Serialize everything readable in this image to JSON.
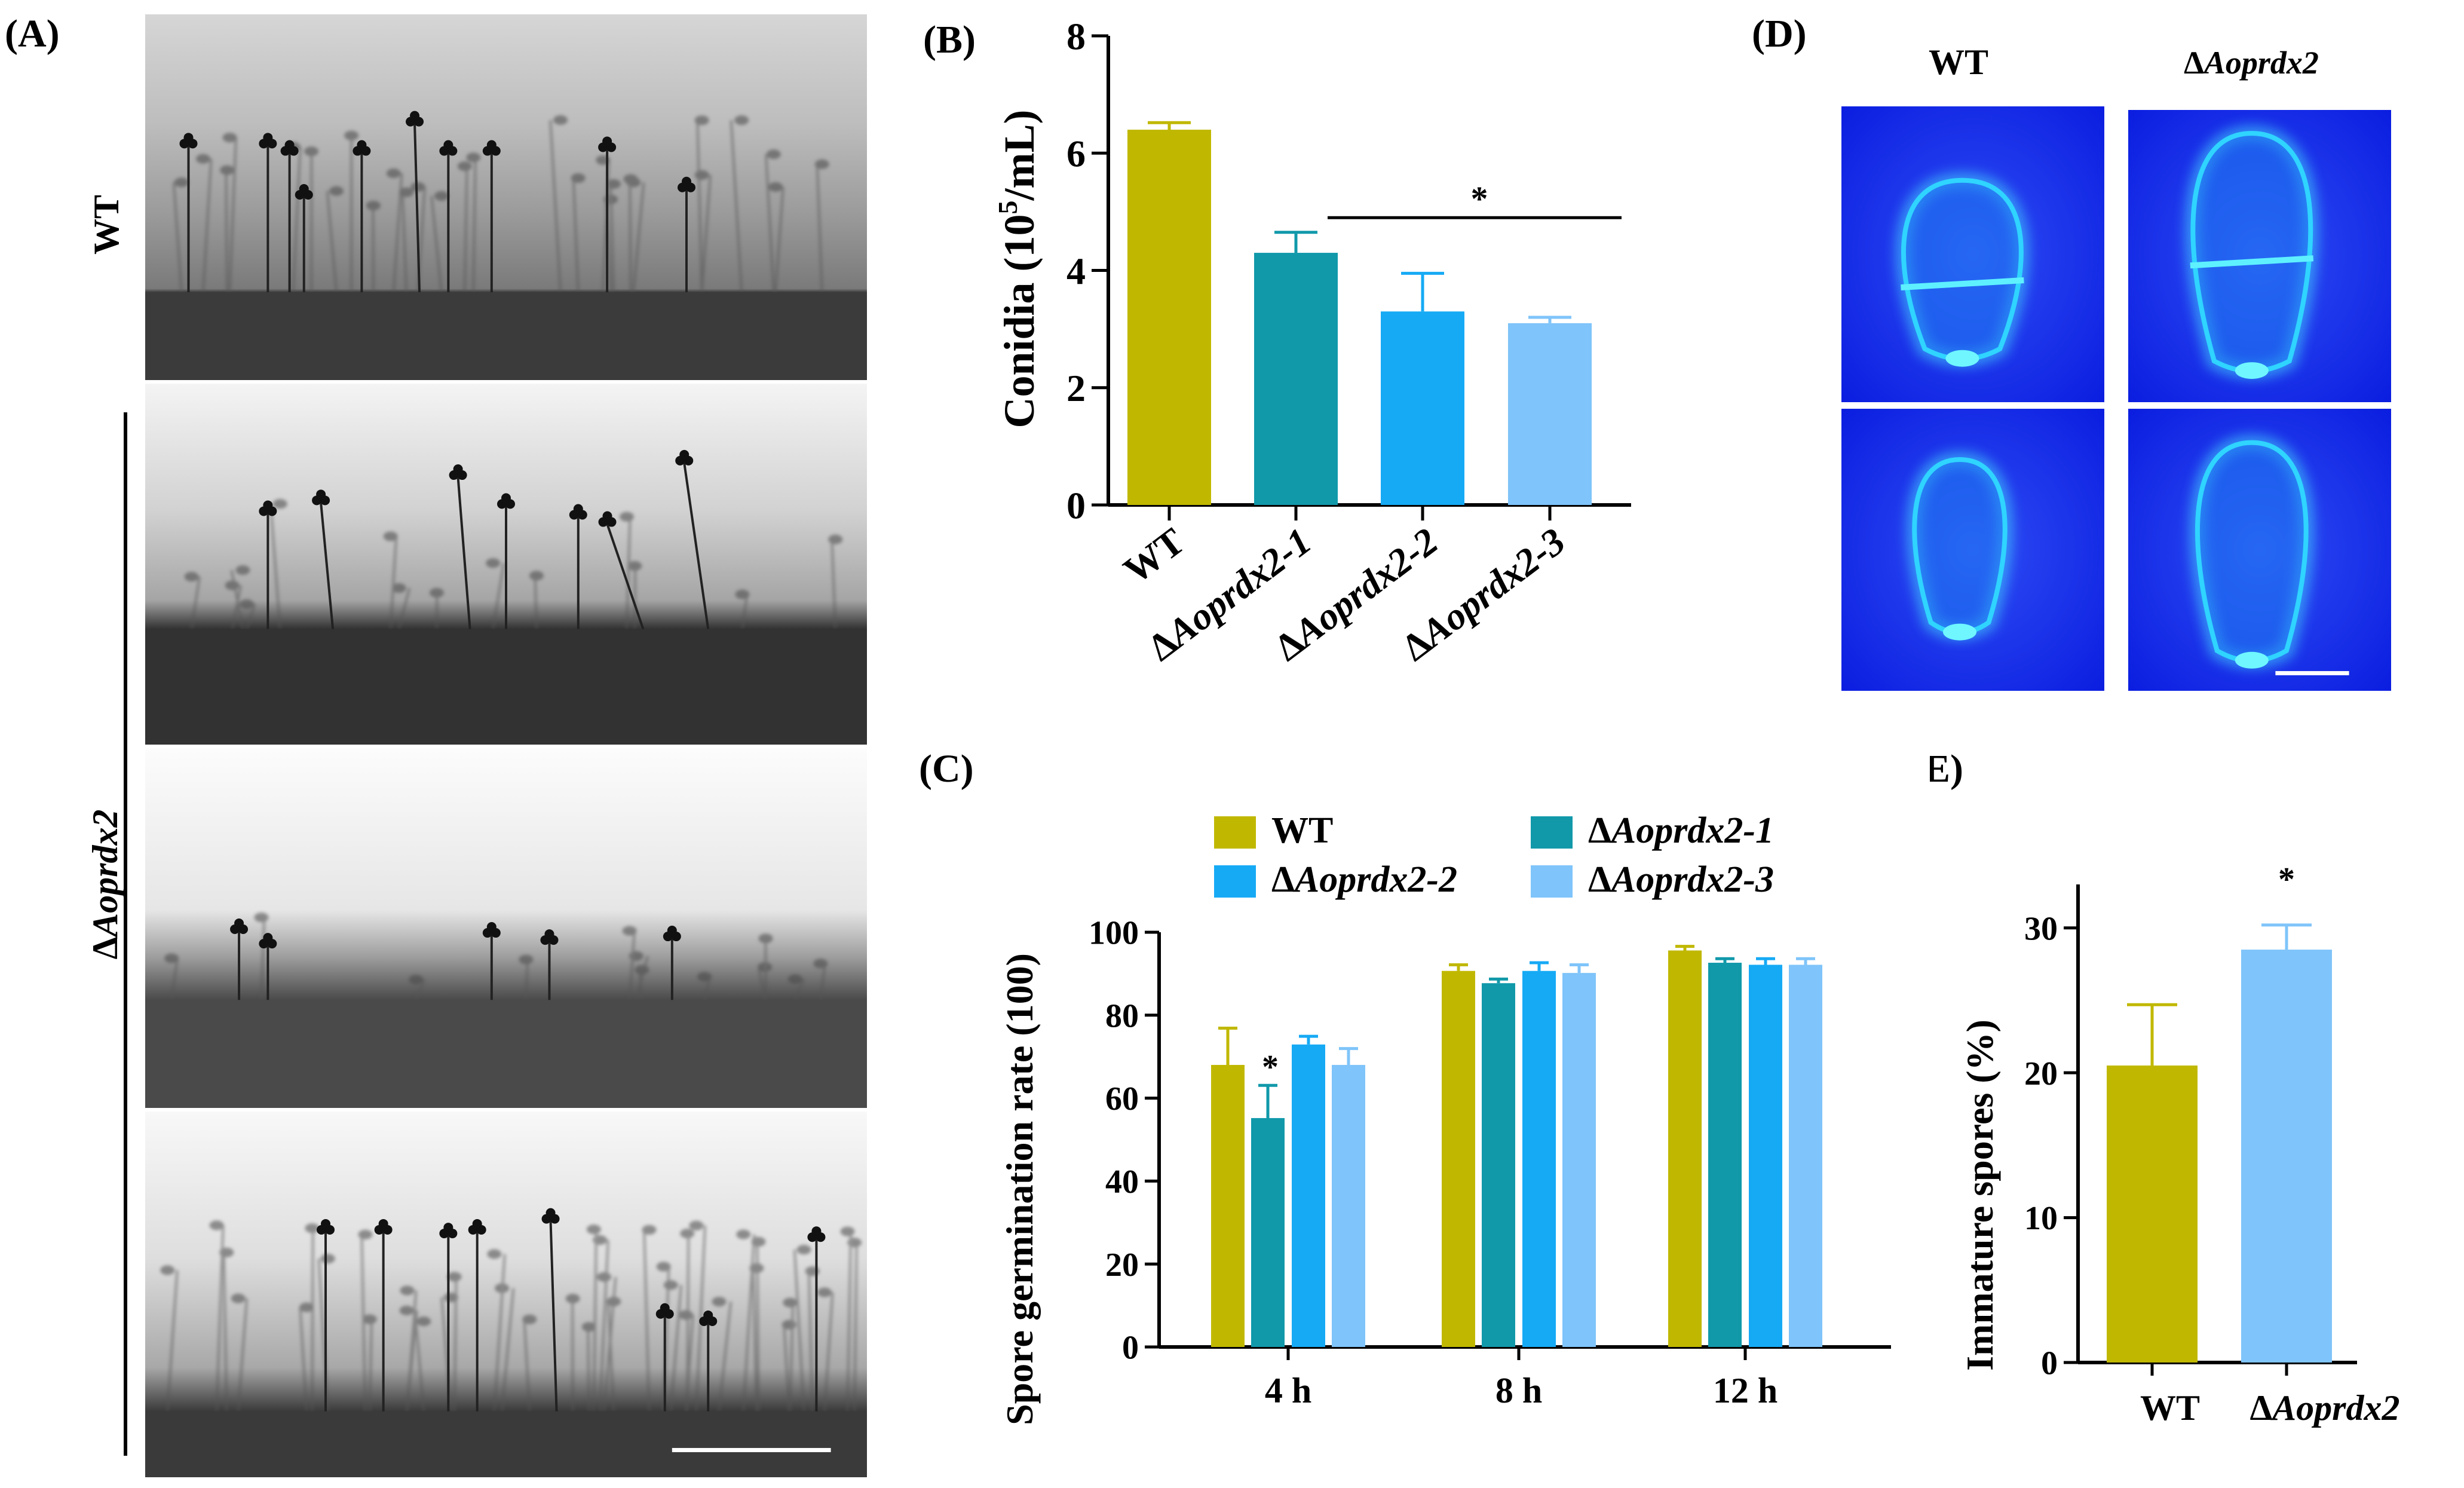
{
  "panels": {
    "A": {
      "label": "(A)",
      "wt_label": "WT",
      "mutant_label_prefix": "Δ",
      "mutant_label_italic": "Aoprdx2"
    },
    "D": {
      "label": "(D)",
      "col1_label": "WT",
      "col2_label_prefix": "Δ",
      "col2_label_italic": "Aoprdx2"
    }
  },
  "colors": {
    "wt": "#c0b800",
    "mut1": "#1199aa",
    "mut2": "#16aaf5",
    "mut3": "#7fc4fa",
    "fluor_bg": "#0b1ee0",
    "fluor_spore": "#2fd4ff"
  },
  "chart_data": [
    {
      "id": "B",
      "panel_label": "(B)",
      "type": "bar",
      "ylabel_pre": "Conidia (10",
      "ylabel_sup": "5",
      "ylabel_post": "/mL)",
      "ylim": [
        0,
        8
      ],
      "yticks": [
        "0",
        "2",
        "4",
        "6",
        "8"
      ],
      "categories": [
        {
          "prefix": "",
          "name": "WT",
          "suffix": ""
        },
        {
          "prefix": "Δ",
          "name": "Aoprdx2",
          "suffix": "-1"
        },
        {
          "prefix": "Δ",
          "name": "Aoprdx2",
          "suffix": "-2"
        },
        {
          "prefix": "Δ",
          "name": "Aoprdx2",
          "suffix": "-3"
        }
      ],
      "values": [
        6.4,
        4.3,
        3.3,
        3.1
      ],
      "errors": [
        0.12,
        0.35,
        0.65,
        0.1
      ],
      "significance": {
        "from": 1,
        "to": 3,
        "label": "*",
        "y": 4.9
      }
    },
    {
      "id": "C",
      "panel_label": "(C)",
      "type": "bar",
      "ylabel": "Spore germination rate (100)",
      "ylim": [
        0,
        100
      ],
      "yticks": [
        "0",
        "20",
        "40",
        "60",
        "80",
        "100"
      ],
      "categories": [
        "4 h",
        "8 h",
        "12 h"
      ],
      "series": [
        {
          "prefix": "",
          "name": "WT",
          "suffix": "",
          "values": [
            69,
            92,
            97
          ],
          "errors": [
            9,
            1.5,
            1
          ]
        },
        {
          "prefix": "Δ",
          "name": "Aoprdx2",
          "suffix": "-1",
          "values": [
            56,
            89,
            94
          ],
          "errors": [
            8,
            1,
            1
          ]
        },
        {
          "prefix": "Δ",
          "name": "Aoprdx2",
          "suffix": "-2",
          "values": [
            74,
            92,
            93.5
          ],
          "errors": [
            2,
            2,
            1.5
          ]
        },
        {
          "prefix": "Δ",
          "name": "Aoprdx2",
          "suffix": "-3",
          "values": [
            69,
            91.5,
            93.5
          ],
          "errors": [
            4,
            2,
            1.5
          ]
        }
      ],
      "annotations": [
        {
          "group": 0,
          "series": 1,
          "label": "*"
        }
      ]
    },
    {
      "id": "E",
      "panel_label": "(E)",
      "type": "bar",
      "ylabel": "Immature spores (%)",
      "ylim": [
        0,
        33
      ],
      "yticks": [
        "0",
        "10",
        "20",
        "30"
      ],
      "categories": [
        {
          "prefix": "",
          "name": "WT",
          "suffix": ""
        },
        {
          "prefix": "Δ",
          "name": "Aoprdx2",
          "suffix": ""
        }
      ],
      "values": [
        20.5,
        28.5
      ],
      "errors": [
        4.2,
        1.7
      ],
      "annotations": [
        {
          "index": 1,
          "label": "*"
        }
      ]
    }
  ]
}
